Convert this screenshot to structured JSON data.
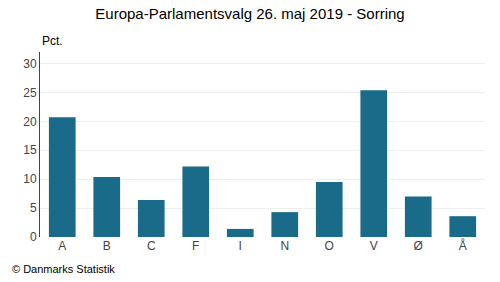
{
  "chart_data": {
    "type": "bar",
    "title": "Europa-Parlamentsvalg 26. maj 2019 - Sorring",
    "categories": [
      "A",
      "B",
      "C",
      "F",
      "I",
      "N",
      "O",
      "V",
      "Ø",
      "Å"
    ],
    "values": [
      20.7,
      10.4,
      6.4,
      12.2,
      1.4,
      4.3,
      9.5,
      25.4,
      7.0,
      3.6
    ],
    "color": "#1a6b8a",
    "ylabel": "Pct.",
    "ylim": [
      0,
      32
    ],
    "yticks": [
      0,
      5,
      10,
      15,
      20,
      25,
      30
    ],
    "grid": true,
    "annotations": [
      "© Danmarks Statistik"
    ]
  }
}
